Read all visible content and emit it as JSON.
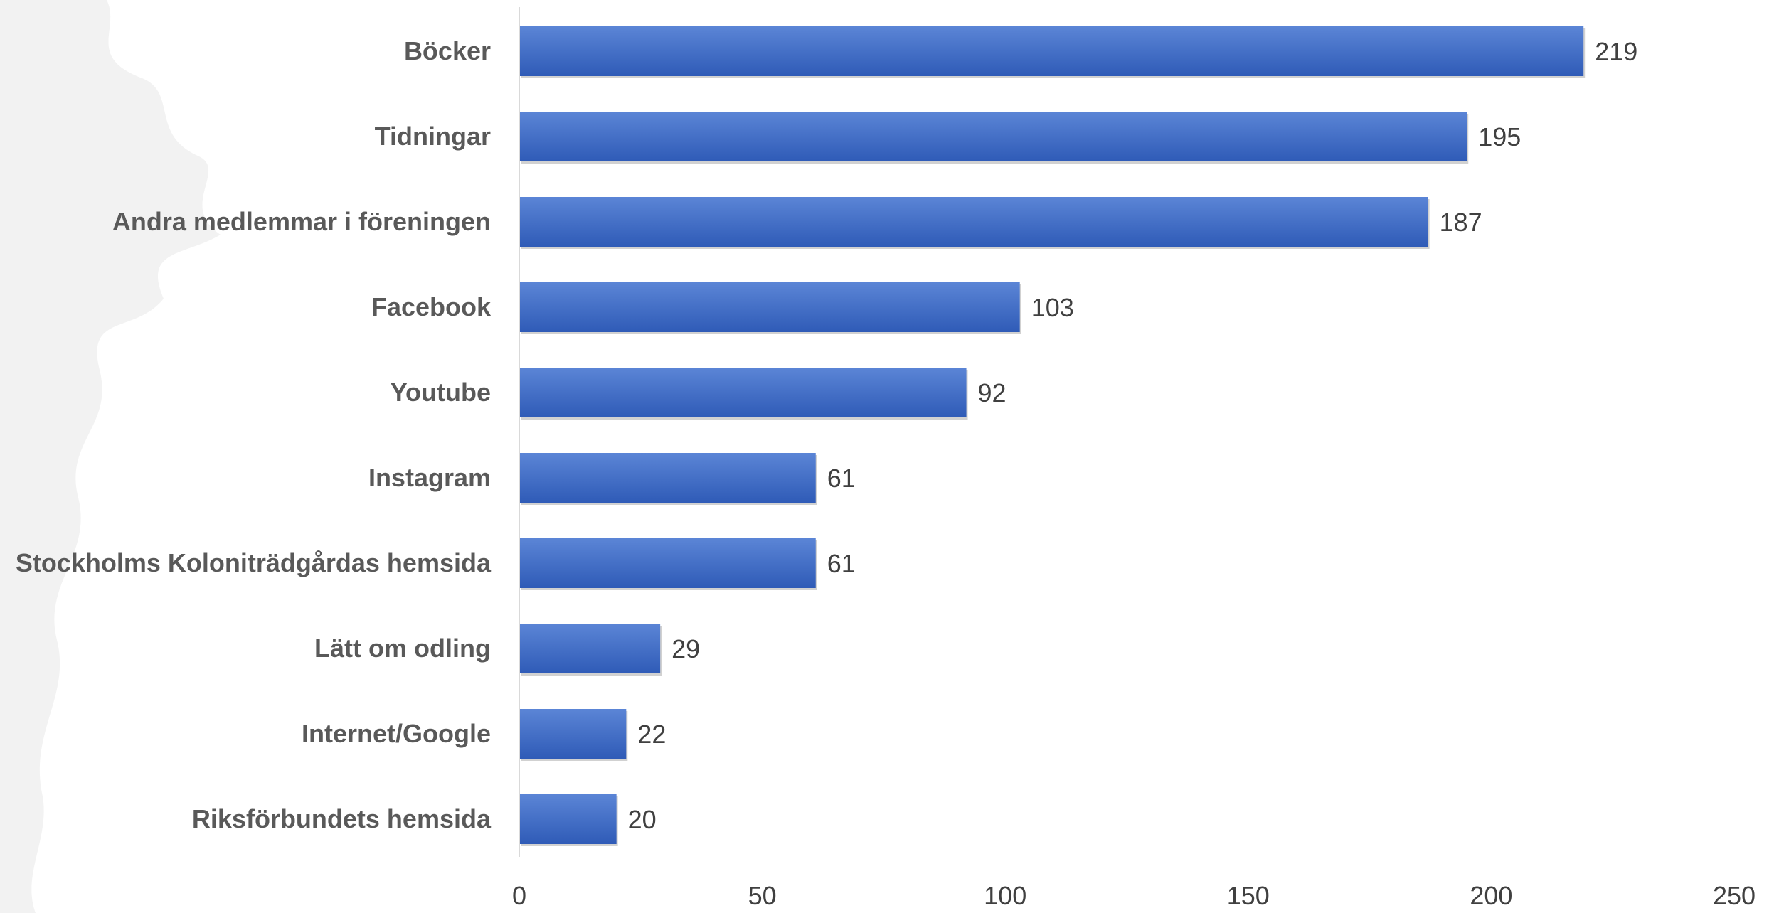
{
  "chart_data": {
    "type": "bar",
    "orientation": "horizontal",
    "categories": [
      "Böcker",
      "Tidningar",
      "Andra medlemmar i föreningen",
      "Facebook",
      "Youtube",
      "Instagram",
      "Stockholms Koloniträdgårdas hemsida",
      "Lätt om odling",
      "Internet/Google",
      "Riksförbundets hemsida"
    ],
    "values": [
      219,
      195,
      187,
      103,
      92,
      61,
      61,
      29,
      22,
      20
    ],
    "xlim": [
      0,
      250
    ],
    "xticks": [
      0,
      50,
      100,
      150,
      200,
      250
    ],
    "title": "",
    "xlabel": "",
    "ylabel": "",
    "grid": false,
    "legend": "none",
    "data_labels": true
  },
  "colors": {
    "bar": "#4472c4",
    "bar_light": "#5b85d6",
    "bar_dark": "#2f5bb7",
    "axis": "#d9d9d9",
    "background_decoration": "#f2f2f2"
  }
}
